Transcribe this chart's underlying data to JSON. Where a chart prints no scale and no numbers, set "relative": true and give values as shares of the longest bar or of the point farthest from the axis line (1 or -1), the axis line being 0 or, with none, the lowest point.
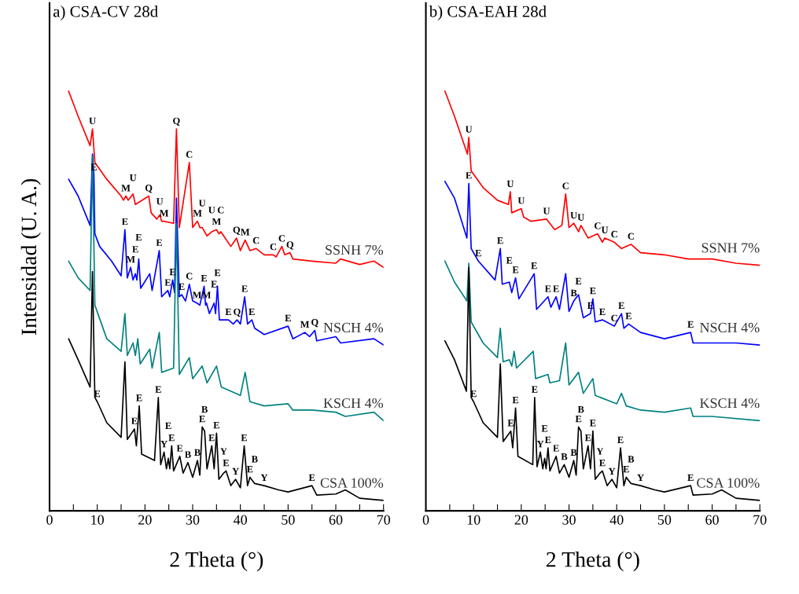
{
  "chart_data": [
    {
      "type": "line",
      "title": "a) CSA-CV 28d",
      "xlabel": "2 Theta (°)",
      "ylabel": "Intensidad (U. A.)",
      "relative": true,
      "grid": false,
      "legend": false,
      "marker": "none",
      "line_style": "solid",
      "xlim": [
        0,
        70
      ],
      "xticks": [
        0,
        {
          "value": 5,
          "label": null
        },
        10,
        {
          "value": 15,
          "label": null
        },
        20,
        {
          "value": 25,
          "label": null
        },
        30,
        {
          "value": 35,
          "label": null
        },
        40,
        {
          "value": 45,
          "label": null
        },
        50,
        {
          "value": 55,
          "label": null
        },
        60,
        {
          "value": 65,
          "label": null
        },
        70
      ],
      "series": [
        {
          "name": "SSNH 7%",
          "color": "#ff0000",
          "x": [
            4,
            6,
            8.5,
            9,
            9.5,
            12,
            15,
            15.5,
            16,
            16.5,
            17.5,
            18,
            20.8,
            21.3,
            22.5,
            23.1,
            23.5,
            24,
            26,
            26.6,
            27.2,
            29.3,
            30,
            31,
            31.5,
            32,
            33,
            34,
            35,
            35.5,
            35.9,
            36.5,
            38,
            39.2,
            40,
            41,
            42,
            43.3,
            45,
            46.9,
            47.5,
            48.7,
            49.3,
            50.4,
            51,
            55,
            60,
            61,
            65,
            68,
            70
          ],
          "values": [
            1.0,
            0.94,
            0.87,
            0.91,
            0.83,
            0.79,
            0.75,
            0.74,
            0.75,
            0.74,
            0.755,
            0.73,
            0.75,
            0.71,
            0.695,
            0.705,
            0.69,
            0.69,
            0.685,
            0.91,
            0.675,
            0.83,
            0.675,
            0.69,
            0.675,
            0.675,
            0.655,
            0.665,
            0.67,
            0.66,
            0.665,
            0.655,
            0.63,
            0.65,
            0.62,
            0.645,
            0.62,
            0.625,
            0.61,
            0.61,
            0.605,
            0.63,
            0.61,
            0.615,
            0.6,
            0.595,
            0.59,
            0.6,
            0.587,
            0.595,
            0.58
          ]
        },
        {
          "name": "NSCH 4%",
          "color": "#0000ff",
          "x": [
            4,
            6,
            8.5,
            9,
            9.3,
            9.5,
            10.5,
            13,
            15,
            15.8,
            16.3,
            17,
            17.5,
            18,
            18.3,
            18.7,
            19.1,
            21,
            21.5,
            23,
            23.5,
            24.8,
            25.2,
            25.8,
            26.2,
            26.6,
            27.2,
            27.7,
            28.5,
            29.3,
            30,
            30.9,
            31.5,
            32.4,
            32.7,
            32.9,
            33.5,
            34.5,
            34.8,
            35.2,
            35.6,
            37.5,
            38.5,
            39.3,
            40,
            40.9,
            41.5,
            42.4,
            43,
            45,
            50,
            51,
            53.5,
            54.5,
            55.6,
            56,
            60,
            61,
            68,
            70
          ],
          "values": [
            0.79,
            0.75,
            0.68,
            0.85,
            0.8,
            0.66,
            0.63,
            0.595,
            0.56,
            0.67,
            0.555,
            0.58,
            0.55,
            0.565,
            0.55,
            0.6,
            0.53,
            0.565,
            0.525,
            0.62,
            0.51,
            0.525,
            0.51,
            0.55,
            0.52,
            0.745,
            0.51,
            0.515,
            0.5,
            0.54,
            0.5,
            0.495,
            0.49,
            0.535,
            0.49,
            0.495,
            0.47,
            0.495,
            0.47,
            0.535,
            0.455,
            0.455,
            0.445,
            0.455,
            0.445,
            0.51,
            0.445,
            0.455,
            0.435,
            0.42,
            0.44,
            0.41,
            0.425,
            0.415,
            0.43,
            0.405,
            0.415,
            0.4,
            0.41,
            0.395
          ]
        },
        {
          "name": "KSCH 4%",
          "color": "#008080",
          "x": [
            4,
            6,
            8.5,
            9,
            9.5,
            12,
            15,
            15.8,
            16.3,
            17.5,
            18,
            18.5,
            19,
            21,
            21.5,
            23,
            23.5,
            26,
            26.6,
            27.2,
            29.3,
            30,
            32,
            33,
            35,
            36,
            40,
            41,
            42,
            45,
            50,
            51,
            55,
            60,
            62,
            68,
            70
          ],
          "values": [
            0.595,
            0.555,
            0.525,
            0.845,
            0.49,
            0.41,
            0.38,
            0.47,
            0.37,
            0.4,
            0.37,
            0.41,
            0.35,
            0.385,
            0.34,
            0.425,
            0.33,
            0.34,
            0.685,
            0.325,
            0.365,
            0.315,
            0.345,
            0.305,
            0.345,
            0.295,
            0.275,
            0.33,
            0.26,
            0.25,
            0.255,
            0.24,
            0.24,
            0.235,
            0.225,
            0.235,
            0.215
          ]
        },
        {
          "name": "CSA 100%",
          "color": "#000000",
          "x": [
            4,
            6,
            8.5,
            9,
            9.5,
            10,
            12,
            15,
            15.8,
            16.3,
            17.8,
            18.2,
            18.8,
            19.3,
            22,
            22.8,
            23.3,
            24,
            24.5,
            24.9,
            25.2,
            25.6,
            26,
            27.3,
            28,
            29,
            30,
            31,
            31.5,
            32,
            32.5,
            33,
            34,
            34.5,
            35,
            35.5,
            36.5,
            37,
            38,
            39,
            40,
            40.8,
            41.5,
            42,
            43,
            45,
            48,
            50,
            55,
            56,
            60,
            62,
            65,
            70
          ],
          "values": [
            0.41,
            0.36,
            0.295,
            0.57,
            0.27,
            0.26,
            0.21,
            0.175,
            0.355,
            0.17,
            0.195,
            0.155,
            0.25,
            0.135,
            0.12,
            0.27,
            0.11,
            0.14,
            0.1,
            0.125,
            0.1,
            0.155,
            0.095,
            0.13,
            0.09,
            0.115,
            0.08,
            0.12,
            0.085,
            0.2,
            0.19,
            0.1,
            0.155,
            0.1,
            0.185,
            0.075,
            0.09,
            0.095,
            0.06,
            0.075,
            0.055,
            0.155,
            0.06,
            0.08,
            0.065,
            0.06,
            0.05,
            0.045,
            0.06,
            0.0375,
            0.04,
            0.05,
            0.03,
            0.025
          ]
        }
      ],
      "annotations": [
        {
          "text": "U",
          "x": 9,
          "y": 0.91
        },
        {
          "text": "Q",
          "x": 26.6,
          "y": 0.91
        },
        {
          "text": "M",
          "x": 24,
          "y": 0.69
        },
        {
          "text": "C",
          "x": 29.3,
          "y": 0.83
        },
        {
          "text": "M",
          "x": 16,
          "y": 0.75
        },
        {
          "text": "U",
          "x": 17.5,
          "y": 0.755
        },
        {
          "text": "Q",
          "x": 20.8,
          "y": 0.75
        },
        {
          "text": "U",
          "x": 23.1,
          "y": 0.705
        },
        {
          "text": "M",
          "x": 31,
          "y": 0.69
        },
        {
          "text": "U",
          "x": 32,
          "y": 0.675
        },
        {
          "text": "M",
          "x": 35,
          "y": 0.67
        },
        {
          "text": "U",
          "x": 34,
          "y": 0.665
        },
        {
          "text": "C",
          "x": 35.9,
          "y": 0.665
        },
        {
          "text": "Q",
          "x": 39.2,
          "y": 0.65
        },
        {
          "text": "M",
          "x": 41,
          "y": 0.645
        },
        {
          "text": "C",
          "x": 43.3,
          "y": 0.625
        },
        {
          "text": "C",
          "x": 46.9,
          "y": 0.61
        },
        {
          "text": "C",
          "x": 48.7,
          "y": 0.63
        },
        {
          "text": "Q",
          "x": 50.4,
          "y": 0.615
        },
        {
          "text": "E",
          "x": 9.3,
          "y": 0.8
        },
        {
          "text": "E",
          "x": 15.8,
          "y": 0.67
        },
        {
          "text": "M",
          "x": 17,
          "y": 0.58
        },
        {
          "text": "E",
          "x": 18,
          "y": 0.565
        },
        {
          "text": "E",
          "x": 18.7,
          "y": 0.6
        },
        {
          "text": "E",
          "x": 23,
          "y": 0.62
        },
        {
          "text": "E",
          "x": 24.8,
          "y": 0.525
        },
        {
          "text": "E",
          "x": 25.8,
          "y": 0.55
        },
        {
          "text": "E",
          "x": 27.7,
          "y": 0.515
        },
        {
          "text": "C",
          "x": 29.3,
          "y": 0.54
        },
        {
          "text": "M",
          "x": 30.9,
          "y": 0.495
        },
        {
          "text": "E",
          "x": 32.4,
          "y": 0.535
        },
        {
          "text": "M",
          "x": 32.9,
          "y": 0.495
        },
        {
          "text": "E",
          "x": 34.5,
          "y": 0.495
        },
        {
          "text": "E",
          "x": 35.2,
          "y": 0.535
        },
        {
          "text": "E",
          "x": 37.5,
          "y": 0.455
        },
        {
          "text": "Q",
          "x": 39.3,
          "y": 0.455
        },
        {
          "text": "E",
          "x": 40.9,
          "y": 0.51
        },
        {
          "text": "E",
          "x": 42.4,
          "y": 0.455
        },
        {
          "text": "E",
          "x": 50,
          "y": 0.44
        },
        {
          "text": "M",
          "x": 53.5,
          "y": 0.425
        },
        {
          "text": "Q",
          "x": 55.6,
          "y": 0.43
        },
        {
          "text": "E",
          "x": 10,
          "y": 0.26
        },
        {
          "text": "E",
          "x": 17.8,
          "y": 0.195
        },
        {
          "text": "E",
          "x": 18.8,
          "y": 0.25
        },
        {
          "text": "E",
          "x": 22.8,
          "y": 0.27
        },
        {
          "text": "Y",
          "x": 24,
          "y": 0.14
        },
        {
          "text": "E",
          "x": 25.6,
          "y": 0.155
        },
        {
          "text": "E",
          "x": 24.9,
          "y": 0.125
        },
        {
          "text": "E",
          "x": 27.3,
          "y": 0.13
        },
        {
          "text": "B",
          "x": 29,
          "y": 0.115
        },
        {
          "text": "B",
          "x": 31,
          "y": 0.12
        },
        {
          "text": "E",
          "x": 32,
          "y": 0.2
        },
        {
          "text": "B",
          "x": 32.5,
          "y": 0.19
        },
        {
          "text": "E",
          "x": 35,
          "y": 0.185
        },
        {
          "text": "E",
          "x": 34,
          "y": 0.155
        },
        {
          "text": "E",
          "x": 37,
          "y": 0.095
        },
        {
          "text": "Y",
          "x": 36.5,
          "y": 0.09
        },
        {
          "text": "Y",
          "x": 39,
          "y": 0.075
        },
        {
          "text": "E",
          "x": 40.8,
          "y": 0.155
        },
        {
          "text": "E",
          "x": 42,
          "y": 0.08
        },
        {
          "text": "B",
          "x": 43,
          "y": 0.065
        },
        {
          "text": "Y",
          "x": 45,
          "y": 0.06
        },
        {
          "text": "E",
          "x": 55,
          "y": 0.06
        }
      ]
    },
    {
      "type": "line",
      "title": "b) CSA-EAH 28d",
      "xlabel": "2 Theta (°)",
      "relative": true,
      "grid": false,
      "legend": false,
      "marker": "none",
      "line_style": "solid",
      "xlim": [
        0,
        70
      ],
      "xticks": [
        0,
        {
          "value": 5,
          "label": null
        },
        10,
        {
          "value": 15,
          "label": null
        },
        20,
        {
          "value": 25,
          "label": null
        },
        30,
        {
          "value": 35,
          "label": null
        },
        40,
        {
          "value": 45,
          "label": null
        },
        50,
        {
          "value": 55,
          "label": null
        },
        60,
        {
          "value": 65,
          "label": null
        },
        70
      ],
      "series": [
        {
          "name": "SSNH 7%",
          "color": "#ff0000",
          "x": [
            4,
            6,
            8.7,
            9,
            9.5,
            12,
            15,
            17.3,
            17.7,
            18,
            20,
            20.5,
            22,
            25.3,
            27,
            28.5,
            29.3,
            30,
            31,
            32,
            32.5,
            34,
            36,
            37,
            37.5,
            39.5,
            41,
            43,
            45,
            50,
            55,
            60,
            65,
            70
          ],
          "values": [
            1.0,
            0.94,
            0.85,
            0.89,
            0.81,
            0.77,
            0.74,
            0.73,
            0.76,
            0.71,
            0.72,
            0.7,
            0.69,
            0.695,
            0.67,
            0.68,
            0.755,
            0.675,
            0.685,
            0.665,
            0.68,
            0.65,
            0.66,
            0.64,
            0.65,
            0.64,
            0.625,
            0.635,
            0.615,
            0.61,
            0.6,
            0.6,
            0.59,
            0.585
          ]
        },
        {
          "name": "NSCH 4%",
          "color": "#0000ff",
          "x": [
            4,
            6,
            8.6,
            9,
            9.5,
            11,
            14.5,
            15.6,
            16,
            17.5,
            18,
            18.8,
            19.5,
            22.7,
            23.2,
            25.6,
            26.2,
            27.3,
            28,
            29.3,
            30,
            31,
            32,
            33,
            34.5,
            35,
            35.5,
            37,
            39.5,
            41,
            41.5,
            42.5,
            45,
            50,
            55.5,
            56,
            60,
            65,
            70
          ],
          "values": [
            0.785,
            0.745,
            0.65,
            0.78,
            0.625,
            0.595,
            0.55,
            0.625,
            0.54,
            0.545,
            0.52,
            0.555,
            0.505,
            0.565,
            0.48,
            0.51,
            0.485,
            0.51,
            0.48,
            0.565,
            0.475,
            0.5,
            0.515,
            0.46,
            0.47,
            0.505,
            0.45,
            0.455,
            0.44,
            0.47,
            0.435,
            0.445,
            0.425,
            0.41,
            0.425,
            0.4,
            0.4,
            0.4,
            0.395
          ]
        },
        {
          "name": "KSCH 4%",
          "color": "#008080",
          "x": [
            4,
            6,
            8.6,
            9,
            9.5,
            12,
            15,
            15.6,
            16.2,
            17.5,
            18,
            18.5,
            19,
            22.5,
            23,
            25.6,
            26,
            28,
            29.3,
            30,
            32,
            33,
            35,
            35.5,
            40,
            41,
            42,
            45,
            50,
            55.5,
            56,
            60,
            70
          ],
          "values": [
            0.595,
            0.545,
            0.5,
            0.59,
            0.45,
            0.4,
            0.365,
            0.435,
            0.355,
            0.36,
            0.345,
            0.38,
            0.34,
            0.38,
            0.315,
            0.325,
            0.305,
            0.31,
            0.4,
            0.3,
            0.33,
            0.28,
            0.315,
            0.275,
            0.255,
            0.28,
            0.25,
            0.24,
            0.235,
            0.245,
            0.225,
            0.225,
            0.215
          ]
        },
        {
          "name": "CSA 100%",
          "color": "#000000",
          "x": [
            4,
            6,
            8.5,
            9,
            9.5,
            10,
            12,
            15,
            15.6,
            16.2,
            17.8,
            18.2,
            18.8,
            19.3,
            22.4,
            22.8,
            23.3,
            24,
            24.5,
            24.9,
            25.2,
            25.6,
            26,
            27.3,
            28,
            29,
            30,
            31,
            31.5,
            32,
            32.5,
            33,
            34,
            34.5,
            35,
            35.5,
            36.5,
            37,
            38,
            39,
            40,
            40.8,
            41.5,
            42,
            43,
            45,
            48,
            50,
            55.5,
            56,
            60,
            62,
            65,
            70
          ],
          "values": [
            0.405,
            0.36,
            0.285,
            0.58,
            0.27,
            0.26,
            0.21,
            0.175,
            0.35,
            0.165,
            0.19,
            0.15,
            0.245,
            0.13,
            0.11,
            0.27,
            0.105,
            0.14,
            0.1,
            0.125,
            0.1,
            0.15,
            0.095,
            0.13,
            0.09,
            0.11,
            0.08,
            0.12,
            0.085,
            0.2,
            0.19,
            0.1,
            0.155,
            0.1,
            0.19,
            0.075,
            0.09,
            0.095,
            0.06,
            0.075,
            0.055,
            0.15,
            0.06,
            0.08,
            0.065,
            0.06,
            0.05,
            0.045,
            0.06,
            0.0375,
            0.04,
            0.05,
            0.03,
            0.025
          ]
        }
      ],
      "annotations": [
        {
          "text": "U",
          "x": 9,
          "y": 0.89
        },
        {
          "text": "U",
          "x": 17.7,
          "y": 0.76
        },
        {
          "text": "U",
          "x": 20,
          "y": 0.72
        },
        {
          "text": "U",
          "x": 25.3,
          "y": 0.695
        },
        {
          "text": "C",
          "x": 29.3,
          "y": 0.755
        },
        {
          "text": "U",
          "x": 31,
          "y": 0.685
        },
        {
          "text": "U",
          "x": 32.5,
          "y": 0.68
        },
        {
          "text": "C",
          "x": 36,
          "y": 0.66
        },
        {
          "text": "U",
          "x": 37.5,
          "y": 0.65
        },
        {
          "text": "C",
          "x": 39.5,
          "y": 0.64
        },
        {
          "text": "C",
          "x": 43,
          "y": 0.635
        },
        {
          "text": "E",
          "x": 9,
          "y": 0.78
        },
        {
          "text": "E",
          "x": 11,
          "y": 0.595
        },
        {
          "text": "E",
          "x": 15.6,
          "y": 0.625
        },
        {
          "text": "E",
          "x": 18.8,
          "y": 0.555
        },
        {
          "text": "E",
          "x": 17.5,
          "y": 0.545
        },
        {
          "text": "E",
          "x": 22.7,
          "y": 0.565
        },
        {
          "text": "E",
          "x": 25.6,
          "y": 0.51
        },
        {
          "text": "E",
          "x": 27.3,
          "y": 0.51
        },
        {
          "text": "B",
          "x": 31,
          "y": 0.5
        },
        {
          "text": "E",
          "x": 32,
          "y": 0.515
        },
        {
          "text": "E",
          "x": 35,
          "y": 0.505
        },
        {
          "text": "E",
          "x": 34.5,
          "y": 0.47
        },
        {
          "text": "E",
          "x": 37,
          "y": 0.455
        },
        {
          "text": "C",
          "x": 39.5,
          "y": 0.44
        },
        {
          "text": "E",
          "x": 41,
          "y": 0.47
        },
        {
          "text": "E",
          "x": 42.5,
          "y": 0.445
        },
        {
          "text": "E",
          "x": 55.5,
          "y": 0.425
        },
        {
          "text": "E",
          "x": 10,
          "y": 0.26
        },
        {
          "text": "E",
          "x": 17.8,
          "y": 0.19
        },
        {
          "text": "E",
          "x": 18.8,
          "y": 0.245
        },
        {
          "text": "E",
          "x": 22.8,
          "y": 0.27
        },
        {
          "text": "Y",
          "x": 24,
          "y": 0.14
        },
        {
          "text": "E",
          "x": 25.6,
          "y": 0.15
        },
        {
          "text": "E",
          "x": 24.9,
          "y": 0.125
        },
        {
          "text": "E",
          "x": 27.3,
          "y": 0.13
        },
        {
          "text": "B",
          "x": 29,
          "y": 0.11
        },
        {
          "text": "B",
          "x": 31,
          "y": 0.12
        },
        {
          "text": "E",
          "x": 32,
          "y": 0.2
        },
        {
          "text": "B",
          "x": 32.5,
          "y": 0.19
        },
        {
          "text": "E",
          "x": 35,
          "y": 0.19
        },
        {
          "text": "E",
          "x": 34,
          "y": 0.155
        },
        {
          "text": "E",
          "x": 37,
          "y": 0.095
        },
        {
          "text": "Y",
          "x": 36.5,
          "y": 0.09
        },
        {
          "text": "Y",
          "x": 39,
          "y": 0.075
        },
        {
          "text": "E",
          "x": 40.8,
          "y": 0.15
        },
        {
          "text": "E",
          "x": 42,
          "y": 0.08
        },
        {
          "text": "B",
          "x": 43,
          "y": 0.065
        },
        {
          "text": "Y",
          "x": 45,
          "y": 0.06
        },
        {
          "text": "E",
          "x": 55.5,
          "y": 0.06
        }
      ]
    }
  ]
}
